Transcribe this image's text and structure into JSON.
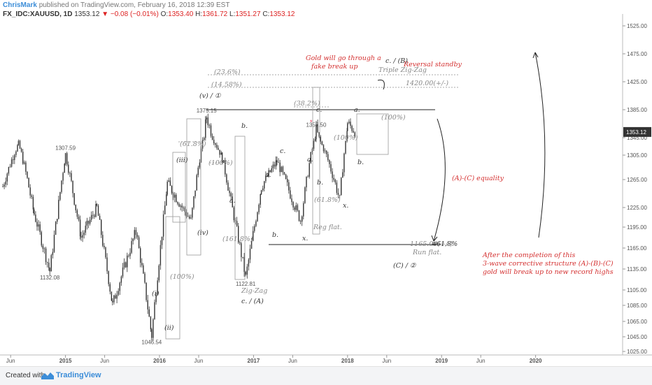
{
  "header": {
    "author": "ChrisMark",
    "published": "published on TradingView.com, February 16, 2018 12:39 EST",
    "symbol": "FX_IDC:XAUUSD, 1D",
    "last": "1353.12",
    "change": "▼ −0.08 (−0.01%)",
    "o_label": "O:",
    "o_val": "1353.40",
    "h_label": "H:",
    "h_val": "1361.72",
    "l_label": "L:",
    "l_val": "1351.27",
    "c_label": "C:",
    "c_val": "1353.12"
  },
  "footer": {
    "created": "Created with",
    "brand": "TradingView"
  },
  "colors": {
    "candle": "#333333",
    "accent": "#3c8dd8",
    "red": "#d43030",
    "gray": "#888888"
  },
  "chart_data": {
    "type": "candlestick",
    "title": "",
    "xlabel": "",
    "ylabel": "",
    "price_axis": {
      "ticks": [
        "1525.00",
        "1475.00",
        "1425.00",
        "1385.00",
        "1345.00",
        "1305.00",
        "1265.00",
        "1225.00",
        "1195.00",
        "1165.00",
        "1135.00",
        "1105.00",
        "1085.00",
        "1065.00",
        "1045.00",
        "1025.00"
      ],
      "last_price": "1353.12"
    },
    "time_axis": {
      "ticks": [
        {
          "label": "Jun",
          "bold": false
        },
        {
          "label": "2015",
          "bold": true
        },
        {
          "label": "Jun",
          "bold": false
        },
        {
          "label": "2016",
          "bold": true
        },
        {
          "label": "Jun",
          "bold": false
        },
        {
          "label": "2017",
          "bold": true
        },
        {
          "label": "Jun",
          "bold": false
        },
        {
          "label": "2018",
          "bold": true
        },
        {
          "label": "Jun",
          "bold": false
        },
        {
          "label": "2019",
          "bold": true
        },
        {
          "label": "Jun",
          "bold": false
        },
        {
          "label": "2020",
          "bold": true
        }
      ]
    },
    "price_path": [
      [
        "2014-05",
        1255
      ],
      [
        "2014-07",
        1330
      ],
      [
        "2014-09",
        1215
      ],
      [
        "2014-11",
        1132.08
      ],
      [
        "2015-01",
        1307.59
      ],
      [
        "2015-03",
        1180
      ],
      [
        "2015-05",
        1225
      ],
      [
        "2015-07",
        1085
      ],
      [
        "2015-10",
        1190
      ],
      [
        "2015-12",
        1046.54
      ],
      [
        "2016-02",
        1260
      ],
      [
        "2016-05",
        1205
      ],
      [
        "2016-07",
        1375.15
      ],
      [
        "2016-09",
        1300
      ],
      [
        "2016-12",
        1122.81
      ],
      [
        "2017-02",
        1255
      ],
      [
        "2017-04",
        1295
      ],
      [
        "2017-07",
        1205
      ],
      [
        "2017-09",
        1357.5
      ],
      [
        "2017-12",
        1236
      ],
      [
        "2018-01",
        1366
      ],
      [
        "2018-02",
        1353.12
      ]
    ],
    "price_labels": [
      "1132.08",
      "1307.59",
      "1046.54",
      "1375.15",
      "1122.81",
      "1357.50"
    ],
    "annotations": {
      "red": [
        "Gold will go through a",
        "fake break up",
        "Reversal standby",
        "(A)-(C) equality",
        "After the completion of this",
        "3-wave corrective structure (A)-(B)-(C)",
        "gold will break up to new record highs"
      ],
      "gray": [
        "(23.6%)",
        "(14.58%)",
        "1420.00(+/-)",
        "Triple Zig-Zag",
        "(38.2%)",
        "(100%)",
        "(100%)",
        "(61.8%)",
        "(100%)",
        "(161.8%)",
        "(61.8%)",
        "(100%)",
        "Reg flat.",
        "Zig-Zag",
        "1165.00(+/-)",
        "Run flat."
      ],
      "dark": [
        "c. / (B)",
        "(v) / ①",
        "(iii)",
        "(iv)",
        "(i)",
        "(ii)",
        "b.",
        "a.",
        "c.",
        "a.",
        "b.",
        "x.",
        "c.",
        "a.",
        "b.",
        "x.",
        "a.",
        "b.",
        "c. / (A)",
        "(C) / ②",
        "≅61.8%"
      ]
    }
  }
}
